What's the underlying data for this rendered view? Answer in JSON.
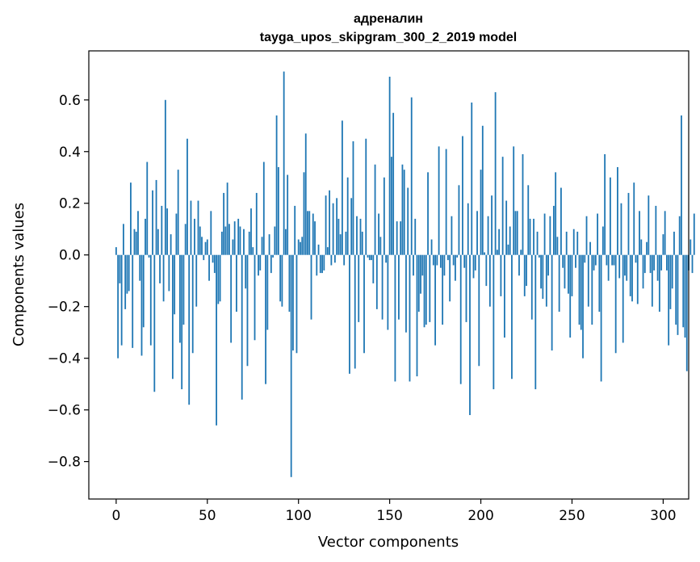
{
  "chart_data": {
    "type": "bar",
    "title_line1": "адреналин",
    "title_line2": "tayga_upos_skipgram_300_2_2019 model",
    "xlabel": "Vector components",
    "ylabel": "Components values",
    "xlim": [
      -15,
      314
    ],
    "ylim": [
      -0.945,
      0.79
    ],
    "x_ticks": [
      0,
      50,
      100,
      150,
      200,
      250,
      300
    ],
    "y_ticks": [
      -0.8,
      -0.6,
      -0.4,
      -0.2,
      0.0,
      0.2,
      0.4,
      0.6
    ],
    "x_tick_labels": [
      "0",
      "50",
      "100",
      "150",
      "200",
      "250",
      "300"
    ],
    "y_tick_labels": [
      "−0.8",
      "−0.6",
      "−0.4",
      "−0.2",
      "0.0",
      "0.2",
      "0.4",
      "0.6"
    ],
    "bar_color": "#1f77b4",
    "values": [
      0.03,
      -0.4,
      -0.11,
      -0.35,
      0.12,
      -0.21,
      -0.15,
      -0.14,
      0.28,
      -0.36,
      0.1,
      0.09,
      0.17,
      -0.1,
      -0.39,
      -0.28,
      0.14,
      0.36,
      -0.01,
      -0.35,
      0.25,
      -0.53,
      0.29,
      0.1,
      -0.11,
      0.19,
      -0.18,
      0.6,
      0.18,
      -0.14,
      0.08,
      -0.48,
      -0.23,
      0.16,
      0.33,
      -0.34,
      -0.52,
      -0.27,
      0.12,
      0.45,
      -0.58,
      0.21,
      -0.38,
      0.14,
      -0.2,
      0.21,
      0.11,
      0.07,
      -0.02,
      0.05,
      0.06,
      -0.1,
      0.17,
      -0.03,
      -0.07,
      -0.66,
      -0.19,
      -0.18,
      0.09,
      0.24,
      0.11,
      0.28,
      0.12,
      -0.34,
      0.06,
      0.13,
      -0.22,
      0.14,
      0.11,
      -0.56,
      0.1,
      -0.13,
      -0.43,
      0.09,
      0.18,
      0.03,
      -0.33,
      0.24,
      -0.08,
      -0.06,
      0.07,
      0.36,
      -0.5,
      -0.29,
      0.08,
      -0.07,
      -0.01,
      0.11,
      0.54,
      0.34,
      -0.18,
      -0.2,
      0.71,
      0.1,
      0.31,
      -0.22,
      -0.86,
      -0.37,
      0.19,
      -0.38,
      0.06,
      0.05,
      0.07,
      0.32,
      0.47,
      0.17,
      0.17,
      -0.25,
      0.16,
      0.13,
      -0.08,
      0.04,
      -0.07,
      -0.07,
      -0.06,
      0.23,
      0.03,
      0.25,
      -0.04,
      0.2,
      -0.03,
      0.22,
      0.14,
      0.08,
      0.52,
      -0.04,
      0.09,
      0.3,
      -0.46,
      0.22,
      0.44,
      -0.44,
      0.15,
      -0.26,
      0.14,
      0.09,
      -0.38,
      0.45,
      -0.01,
      -0.02,
      -0.02,
      -0.11,
      0.35,
      -0.21,
      0.16,
      0.07,
      -0.25,
      0.3,
      -0.03,
      -0.29,
      0.69,
      0.38,
      0.55,
      -0.49,
      0.13,
      -0.25,
      0.13,
      0.35,
      0.33,
      -0.3,
      0.26,
      -0.49,
      0.61,
      -0.08,
      0.14,
      -0.47,
      -0.22,
      -0.15,
      -0.08,
      -0.28,
      -0.27,
      0.32,
      -0.26,
      0.06,
      -0.04,
      -0.35,
      -0.04,
      0.42,
      -0.05,
      -0.27,
      -0.08,
      0.41,
      -0.02,
      -0.18,
      0.15,
      -0.04,
      -0.1,
      -0.01,
      0.27,
      -0.5,
      0.46,
      -0.05,
      -0.26,
      0.2,
      -0.62,
      0.59,
      -0.09,
      -0.06,
      0.17,
      -0.43,
      0.33,
      0.5,
      0.01,
      -0.12,
      0.15,
      -0.2,
      0.23,
      -0.52,
      0.63,
      0.02,
      0.1,
      -0.16,
      0.38,
      -0.32,
      0.21,
      0.04,
      0.11,
      -0.48,
      0.42,
      0.17,
      0.17,
      -0.08,
      0.02,
      0.39,
      -0.16,
      -0.12,
      0.27,
      0.14,
      -0.25,
      0.14,
      -0.52,
      0.09,
      -0.01,
      -0.13,
      -0.17,
      0.16,
      -0.2,
      -0.08,
      0.15,
      -0.37,
      0.19,
      0.32,
      0.07,
      -0.22,
      0.26,
      -0.05,
      -0.13,
      0.09,
      -0.15,
      -0.32,
      -0.16,
      0.1,
      -0.05,
      0.09,
      -0.27,
      -0.29,
      -0.4,
      -0.03,
      0.15,
      -0.2,
      0.05,
      -0.27,
      -0.06,
      -0.04,
      0.16,
      -0.22,
      -0.49,
      0.11,
      0.39,
      -0.04,
      -0.1,
      0.3,
      -0.04,
      -0.04,
      -0.38,
      0.34,
      -0.09,
      0.2,
      -0.34,
      -0.08,
      -0.1,
      0.24,
      -0.16,
      -0.18,
      0.28,
      -0.03,
      -0.19,
      0.17,
      0.06,
      -0.13,
      -0.07,
      0.05,
      0.23,
      -0.07,
      -0.2,
      -0.06,
      0.19,
      -0.1,
      -0.22,
      -0.06,
      0.08,
      0.17,
      -0.06,
      -0.35,
      -0.21,
      -0.13,
      0.09,
      -0.27,
      -0.31,
      0.15,
      0.54,
      -0.28,
      -0.32,
      -0.45,
      -0.06,
      0.06,
      -0.07,
      0.16
    ]
  }
}
